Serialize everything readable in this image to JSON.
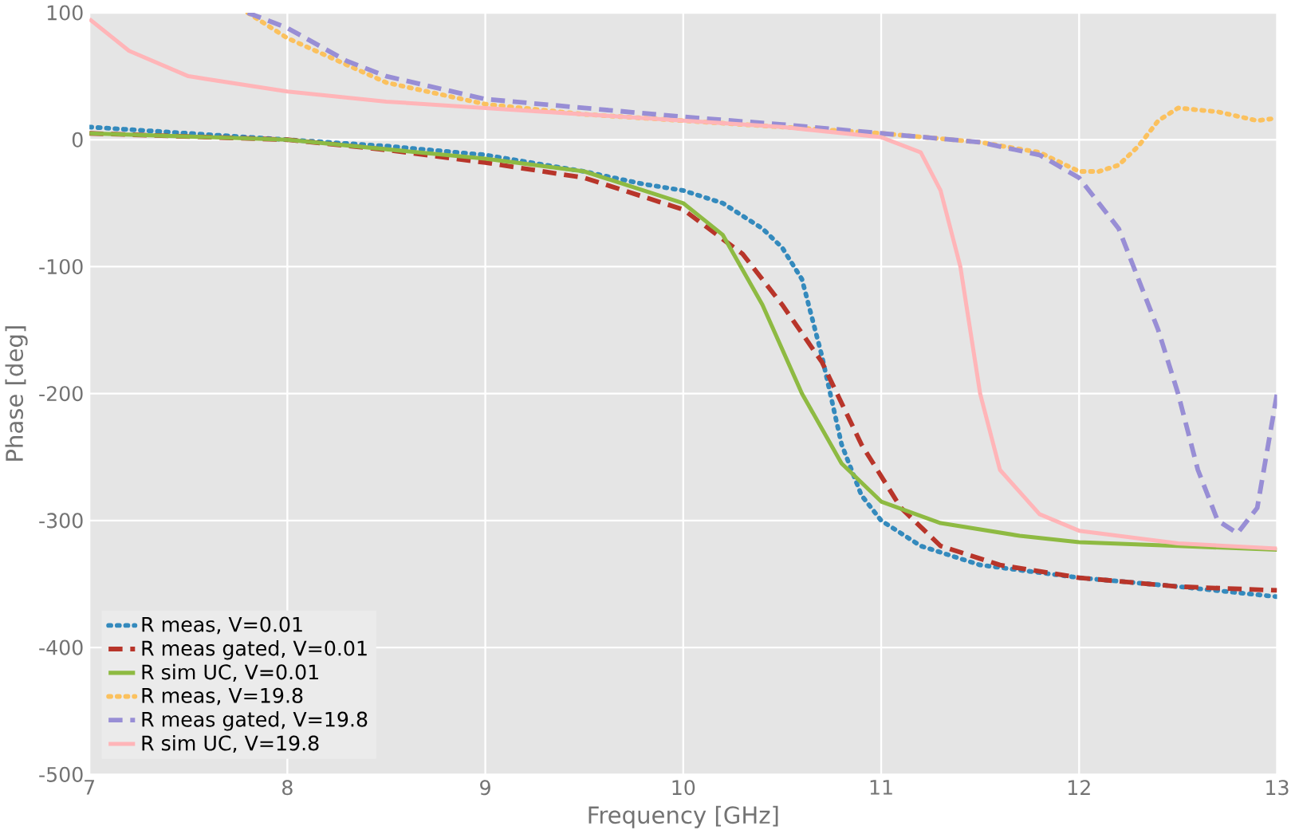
{
  "chart_data": {
    "type": "line",
    "xlabel": "Frequency [GHz]",
    "ylabel": "Phase [deg]",
    "xlim": [
      7,
      13
    ],
    "ylim": [
      -500,
      100
    ],
    "xticks": [
      7,
      8,
      9,
      10,
      11,
      12,
      13
    ],
    "yticks": [
      -500,
      -400,
      -300,
      -200,
      -100,
      0,
      100
    ],
    "grid": true,
    "legend": "bottom left",
    "series": [
      {
        "name": "R meas, V=0.01",
        "color": "#348abd",
        "line_style": "dotted",
        "x": [
          7,
          7.5,
          8,
          8.5,
          9,
          9.5,
          9.8,
          10,
          10.2,
          10.4,
          10.5,
          10.6,
          10.7,
          10.8,
          10.9,
          11,
          11.2,
          11.5,
          12,
          12.5,
          13
        ],
        "values": [
          10,
          5,
          0,
          -5,
          -12,
          -25,
          -35,
          -40,
          -50,
          -70,
          -85,
          -110,
          -170,
          -240,
          -280,
          -300,
          -320,
          -335,
          -345,
          -352,
          -360
        ]
      },
      {
        "name": "R meas gated, V=0.01",
        "color": "#b8352a",
        "line_style": "dashed",
        "x": [
          7,
          8,
          8.5,
          9,
          9.5,
          10,
          10.3,
          10.5,
          10.7,
          10.9,
          11.1,
          11.3,
          11.6,
          12,
          12.5,
          13
        ],
        "values": [
          5,
          0,
          -8,
          -18,
          -30,
          -55,
          -90,
          -130,
          -175,
          -240,
          -290,
          -320,
          -335,
          -345,
          -352,
          -355
        ]
      },
      {
        "name": "R sim UC, V=0.01",
        "color": "#8eba42",
        "line_style": "solid",
        "x": [
          7,
          8,
          9,
          9.5,
          10,
          10.2,
          10.4,
          10.6,
          10.8,
          11,
          11.3,
          11.7,
          12,
          12.5,
          13
        ],
        "values": [
          5,
          0,
          -15,
          -25,
          -50,
          -75,
          -130,
          -200,
          -255,
          -285,
          -302,
          -312,
          -317,
          -320,
          -323
        ]
      },
      {
        "name": "R meas, V=19.8",
        "color": "#fbc15e",
        "line_style": "dotted",
        "x": [
          7.8,
          8,
          8.5,
          9,
          9.5,
          10,
          10.5,
          11,
          11.5,
          11.8,
          12,
          12.1,
          12.2,
          12.3,
          12.4,
          12.5,
          12.7,
          12.9,
          13
        ],
        "values": [
          100,
          80,
          45,
          28,
          20,
          15,
          10,
          5,
          -2,
          -10,
          -25,
          -25,
          -20,
          -5,
          15,
          25,
          22,
          15,
          17
        ]
      },
      {
        "name": "R meas gated, V=19.8",
        "color": "#988ed5",
        "line_style": "dashed",
        "x": [
          7.8,
          8,
          8.3,
          8.5,
          9,
          9.5,
          10,
          10.5,
          11,
          11.5,
          11.8,
          12,
          12.2,
          12.4,
          12.5,
          12.6,
          12.7,
          12.8,
          12.9,
          13
        ],
        "values": [
          100,
          88,
          62,
          50,
          32,
          25,
          18,
          12,
          5,
          -2,
          -12,
          -30,
          -70,
          -150,
          -200,
          -260,
          -300,
          -310,
          -290,
          -200
        ]
      },
      {
        "name": "R sim UC, V=19.8",
        "color": "#ffb5b8",
        "line_style": "solid",
        "x": [
          7,
          7.2,
          7.5,
          8,
          8.5,
          9,
          9.5,
          10,
          10.5,
          11,
          11.2,
          11.3,
          11.4,
          11.5,
          11.6,
          11.8,
          12,
          12.5,
          13
        ],
        "values": [
          95,
          70,
          50,
          38,
          30,
          25,
          20,
          15,
          10,
          2,
          -10,
          -40,
          -100,
          -200,
          -260,
          -295,
          -308,
          -318,
          -322
        ]
      }
    ]
  }
}
